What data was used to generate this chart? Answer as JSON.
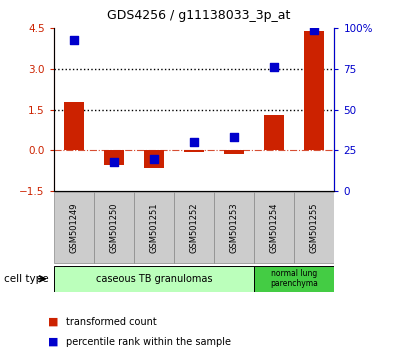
{
  "title": "GDS4256 / g11138033_3p_at",
  "samples": [
    "GSM501249",
    "GSM501250",
    "GSM501251",
    "GSM501252",
    "GSM501253",
    "GSM501254",
    "GSM501255"
  ],
  "transformed_count": [
    1.8,
    -0.55,
    -0.65,
    -0.05,
    -0.12,
    1.3,
    4.4
  ],
  "percentile_rank": [
    93,
    18,
    20,
    30,
    33,
    76,
    99
  ],
  "ylim_left": [
    -1.5,
    4.5
  ],
  "ylim_right": [
    0,
    100
  ],
  "yticks_left": [
    -1.5,
    0,
    1.5,
    3.0,
    4.5
  ],
  "yticks_right": [
    0,
    25,
    50,
    75,
    100
  ],
  "yticklabels_right": [
    "0",
    "25",
    "50",
    "75",
    "100%"
  ],
  "hlines_dotted": [
    3.0,
    1.5
  ],
  "hline_dashdot_color": "#cc2200",
  "bar_color": "#cc2200",
  "dot_color": "#0000cc",
  "bar_width": 0.5,
  "dot_size": 40,
  "group0_color": "#bbffbb",
  "group1_color": "#44cc44",
  "group0_label": "caseous TB granulomas",
  "group1_label": "normal lung\nparenchyma",
  "cell_type_label": "cell type",
  "legend": [
    {
      "color": "#cc2200",
      "label": "transformed count"
    },
    {
      "color": "#0000cc",
      "label": "percentile rank within the sample"
    }
  ]
}
